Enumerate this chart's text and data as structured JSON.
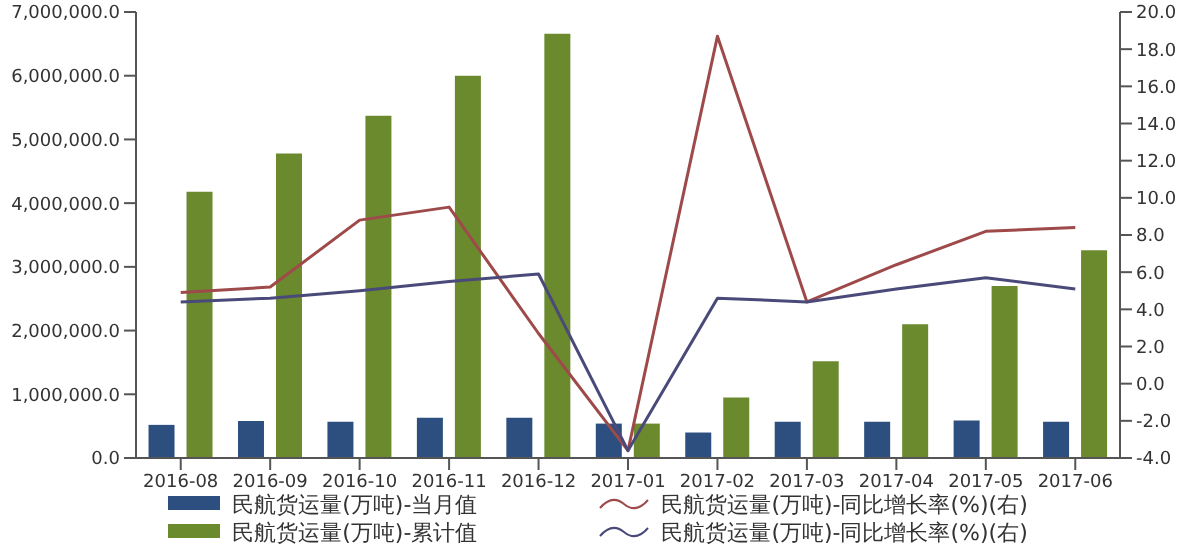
{
  "chart_data": {
    "type": "bar",
    "categories": [
      "2016-08",
      "2016-09",
      "2016-10",
      "2016-11",
      "2016-12",
      "2017-01",
      "2017-02",
      "2017-03",
      "2017-04",
      "2017-05",
      "2017-06"
    ],
    "series": [
      {
        "name": "民航货运量(万吨)-当月值",
        "color": "#2c4f7f",
        "values": [
          520000,
          580000,
          570000,
          630000,
          630000,
          540000,
          400000,
          570000,
          570000,
          590000,
          570000
        ]
      },
      {
        "name": "民航货运量(万吨)-累计值",
        "color": "#6b8a2e",
        "values": [
          4180000,
          4780000,
          5370000,
          6000000,
          6660000,
          540000,
          950000,
          1520000,
          2100000,
          2700000,
          3260000
        ]
      },
      {
        "name": "民航货运量(万吨)-同比增长率(%)(右)",
        "type": "line",
        "axis": "y2",
        "color": "#9e4a4a",
        "values": [
          4.9,
          5.2,
          8.8,
          9.5,
          2.7,
          -3.6,
          18.7,
          4.4,
          6.4,
          8.2,
          8.4
        ]
      },
      {
        "name": "民航货运量(万吨)-同比增长率(%)(右)",
        "type": "line",
        "axis": "y2",
        "color": "#4a4a7a",
        "values": [
          4.4,
          4.6,
          5.0,
          5.5,
          5.9,
          -3.6,
          4.6,
          4.4,
          5.1,
          5.7,
          5.1
        ]
      }
    ],
    "ylim": [
      0,
      7000000
    ],
    "yticks": [
      {
        "value": 0,
        "label": "0.0"
      },
      {
        "value": 1000000,
        "label": "1,000,000.0"
      },
      {
        "value": 2000000,
        "label": "2,000,000.0"
      },
      {
        "value": 3000000,
        "label": "3,000,000.0"
      },
      {
        "value": 4000000,
        "label": "4,000,000.0"
      },
      {
        "value": 5000000,
        "label": "5,000,000.0"
      },
      {
        "value": 6000000,
        "label": "6,000,000.0"
      },
      {
        "value": 7000000,
        "label": "7,000,000.0"
      }
    ],
    "y2lim": [
      -4,
      20
    ],
    "y2ticks": [
      {
        "value": -4,
        "label": "-4.0"
      },
      {
        "value": -2,
        "label": "-2.0"
      },
      {
        "value": 0,
        "label": "0.0"
      },
      {
        "value": 2,
        "label": "2.0"
      },
      {
        "value": 4,
        "label": "4.0"
      },
      {
        "value": 6,
        "label": "6.0"
      },
      {
        "value": 8,
        "label": "8.0"
      },
      {
        "value": 10,
        "label": "10.0"
      },
      {
        "value": 12,
        "label": "12.0"
      },
      {
        "value": 14,
        "label": "14.0"
      },
      {
        "value": 16,
        "label": "16.0"
      },
      {
        "value": 18,
        "label": "18.0"
      },
      {
        "value": 20,
        "label": "20.0"
      }
    ],
    "grid": false,
    "legend": "bottom"
  }
}
